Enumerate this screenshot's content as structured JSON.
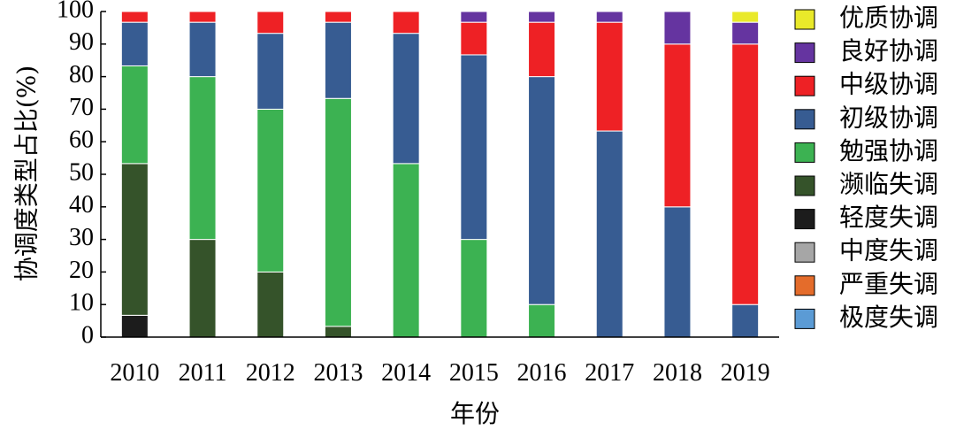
{
  "chart_data": {
    "type": "bar",
    "stacked": true,
    "xlabel": "年份",
    "ylabel": "协调度类型占比(%)",
    "ylim": [
      0,
      100
    ],
    "yticks": [
      0,
      10,
      20,
      30,
      40,
      50,
      60,
      70,
      80,
      90,
      100
    ],
    "categories": [
      "2010",
      "2011",
      "2012",
      "2013",
      "2014",
      "2015",
      "2016",
      "2017",
      "2018",
      "2019"
    ],
    "legend_position": "right",
    "series": [
      {
        "name": "极度失调",
        "color": "#5b9bd5",
        "values": [
          0,
          0,
          0,
          0,
          0,
          0,
          0,
          0,
          0,
          0
        ]
      },
      {
        "name": "严重失调",
        "color": "#e46c2b",
        "values": [
          0,
          0,
          0,
          0,
          0,
          0,
          0,
          0,
          0,
          0
        ]
      },
      {
        "name": "中度失调",
        "color": "#a6a6a6",
        "values": [
          0,
          0,
          0,
          0,
          0,
          0,
          0,
          0,
          0,
          0
        ]
      },
      {
        "name": "轻度失调",
        "color": "#1c1c1c",
        "values": [
          6.7,
          0,
          0,
          0,
          0,
          0,
          0,
          0,
          0,
          0
        ]
      },
      {
        "name": "濒临失调",
        "color": "#35532a",
        "values": [
          46.6,
          30,
          20,
          3.3,
          0,
          0,
          0,
          0,
          0,
          0
        ]
      },
      {
        "name": "勉强协调",
        "color": "#3cb252",
        "values": [
          30,
          50,
          50,
          70,
          53.3,
          30,
          10,
          0,
          0,
          0
        ]
      },
      {
        "name": "初级协调",
        "color": "#375c92",
        "values": [
          13.4,
          16.7,
          23.3,
          23.4,
          40,
          56.7,
          70,
          63.3,
          40,
          10
        ]
      },
      {
        "name": "中级协调",
        "color": "#ee2125",
        "values": [
          3.3,
          3.3,
          6.7,
          3.3,
          6.7,
          10,
          16.7,
          33.4,
          50,
          80
        ]
      },
      {
        "name": "良好协调",
        "color": "#6534a0",
        "values": [
          0,
          0,
          0,
          0,
          0,
          3.3,
          3.3,
          3.3,
          10,
          6.7
        ]
      },
      {
        "name": "优质协调",
        "color": "#e9e92a",
        "values": [
          0,
          0,
          0,
          0,
          0,
          0,
          0,
          0,
          0,
          3.3
        ]
      }
    ],
    "legend_order": [
      "优质协调",
      "良好协调",
      "中级协调",
      "初级协调",
      "勉强协调",
      "濒临失调",
      "轻度失调",
      "中度失调",
      "严重失调",
      "极度失调"
    ]
  }
}
